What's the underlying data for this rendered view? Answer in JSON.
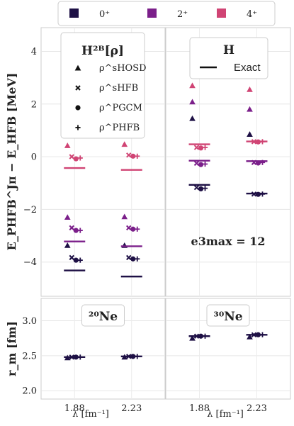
{
  "chart_data": {
    "type": "scatter",
    "colors": {
      "0+": "#1e1045",
      "2+": "#7b1f8a",
      "4+": "#d04474"
    },
    "top_legend": [
      {
        "key": "0+",
        "label": "0⁺"
      },
      {
        "key": "2+",
        "label": "2⁺"
      },
      {
        "key": "4+",
        "label": "4⁺"
      }
    ],
    "x_categories": [
      "1.88",
      "2.23"
    ],
    "xlabel": "λ [fm⁻¹]",
    "top": {
      "ylabel": "E_PHFB^Jπ − E_HFB [MeV]",
      "ylim": [
        -5.3,
        4.9
      ],
      "yticks": [
        "4",
        "2",
        "0",
        "−2",
        "−4"
      ],
      "ytick_values": [
        4,
        2,
        0,
        -2,
        -4
      ],
      "legend_left": {
        "title": "H²ᴮ[ρ]",
        "entries": [
          {
            "marker": "triangle",
            "label": "ρ^sHOSD"
          },
          {
            "marker": "x",
            "label": "ρ^sHFB"
          },
          {
            "marker": "circle",
            "label": "ρ^PGCM"
          },
          {
            "marker": "plus",
            "label": "ρ^PHFB"
          }
        ]
      },
      "legend_right": {
        "title": "H",
        "entries": [
          {
            "marker": "line",
            "label": "Exact"
          }
        ]
      },
      "annotation": "e3max = 12",
      "panels": [
        {
          "nucleus": "20Ne",
          "points": {
            "1.88": {
              "0+": {
                "exact": -4.32,
                "sHOSD": -3.37,
                "sHFB": -3.83,
                "PGCM": -3.93,
                "PHFB": -3.93
              },
              "2+": {
                "exact": -3.22,
                "sHOSD": -2.3,
                "sHFB": -2.7,
                "PGCM": -2.8,
                "PHFB": -2.8
              },
              "4+": {
                "exact": -0.43,
                "sHOSD": 0.42,
                "sHFB": 0.0,
                "PGCM": -0.08,
                "PHFB": -0.05
              }
            },
            "2.23": {
              "0+": {
                "exact": -4.55,
                "sHOSD": -3.37,
                "sHFB": -3.83,
                "PGCM": -3.88,
                "PHFB": -3.88
              },
              "2+": {
                "exact": -3.4,
                "sHOSD": -2.28,
                "sHFB": -2.7,
                "PGCM": -2.75,
                "PHFB": -2.75
              },
              "4+": {
                "exact": -0.5,
                "sHOSD": 0.47,
                "sHFB": 0.06,
                "PGCM": 0.02,
                "PHFB": 0.02
              }
            }
          }
        },
        {
          "nucleus": "30Ne",
          "points": {
            "1.88": {
              "0+": {
                "exact": -1.07,
                "sHOSD": 1.45,
                "sHFB": -1.17,
                "PGCM": -1.22,
                "PHFB": -1.2
              },
              "2+": {
                "exact": -0.15,
                "sHOSD": 2.08,
                "sHFB": -0.25,
                "PGCM": -0.3,
                "PHFB": -0.28
              },
              "4+": {
                "exact": 0.47,
                "sHOSD": 2.7,
                "sHFB": 0.35,
                "PGCM": 0.33,
                "PHFB": 0.35
              }
            },
            "2.23": {
              "0+": {
                "exact": -1.4,
                "sHOSD": 0.85,
                "sHFB": -1.42,
                "PGCM": -1.43,
                "PHFB": -1.42
              },
              "2+": {
                "exact": -0.17,
                "sHOSD": 1.8,
                "sHFB": -0.22,
                "PGCM": -0.24,
                "PHFB": -0.22
              },
              "4+": {
                "exact": 0.58,
                "sHOSD": 2.55,
                "sHFB": 0.57,
                "PGCM": 0.56,
                "PHFB": 0.57
              }
            }
          }
        }
      ]
    },
    "bottom": {
      "ylabel": "r_m [fm]",
      "ylim": [
        1.88,
        3.32
      ],
      "yticks": [
        "3.0",
        "2.5",
        "2.0"
      ],
      "ytick_values": [
        3.0,
        2.5,
        2.0
      ],
      "panels": [
        {
          "nucleus": "20Ne",
          "label": "²⁰Ne",
          "points": {
            "1.88": {
              "exact": 2.48,
              "sHOSD": 2.47,
              "sHFB": 2.48,
              "PGCM": 2.48,
              "PHFB": 2.48
            },
            "2.23": {
              "exact": 2.49,
              "sHOSD": 2.48,
              "sHFB": 2.49,
              "PGCM": 2.49,
              "PHFB": 2.49
            }
          }
        },
        {
          "nucleus": "30Ne",
          "label": "³⁰Ne",
          "points": {
            "1.88": {
              "exact": 2.78,
              "sHOSD": 2.75,
              "sHFB": 2.78,
              "PGCM": 2.78,
              "PHFB": 2.78
            },
            "2.23": {
              "exact": 2.8,
              "sHOSD": 2.77,
              "sHFB": 2.8,
              "PGCM": 2.8,
              "PHFB": 2.8
            }
          }
        }
      ]
    }
  }
}
